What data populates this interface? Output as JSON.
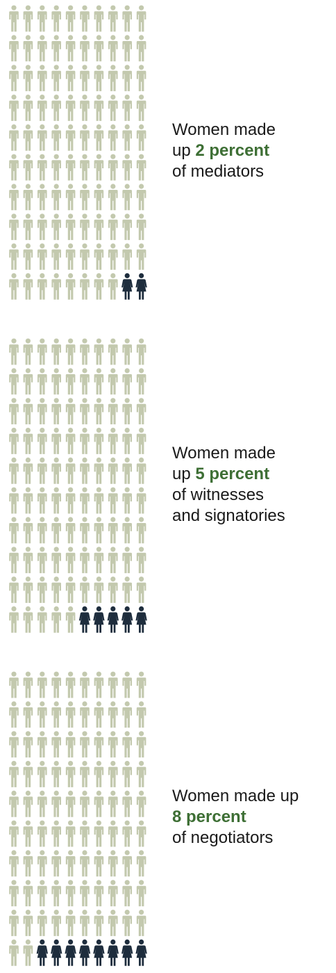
{
  "colors": {
    "man": "#c3c9ae",
    "woman": "#1e2d3d",
    "highlight": "#3e6f35",
    "text": "#1a1a1a"
  },
  "icons": {
    "man": "person-icon",
    "woman": "woman-icon"
  },
  "chart_data": [
    {
      "type": "pictograph",
      "total": 100,
      "columns": 10,
      "rows": 10,
      "women": 2,
      "value_percent": 2,
      "caption": {
        "lead": "Women made",
        "prefix": "up ",
        "value": "2 percent",
        "tail": "of mediators"
      }
    },
    {
      "type": "pictograph",
      "total": 100,
      "columns": 10,
      "rows": 10,
      "women": 5,
      "value_percent": 5,
      "caption": {
        "lead": "Women made",
        "prefix": "up ",
        "value": "5 percent",
        "tail": "of witnesses",
        "tail2": "and signatories"
      }
    },
    {
      "type": "pictograph",
      "total": 100,
      "columns": 10,
      "rows": 10,
      "women": 8,
      "value_percent": 8,
      "caption": {
        "lead": "Women made up",
        "prefix": "",
        "value": "8 percent",
        "tail": "of negotiators"
      }
    }
  ]
}
